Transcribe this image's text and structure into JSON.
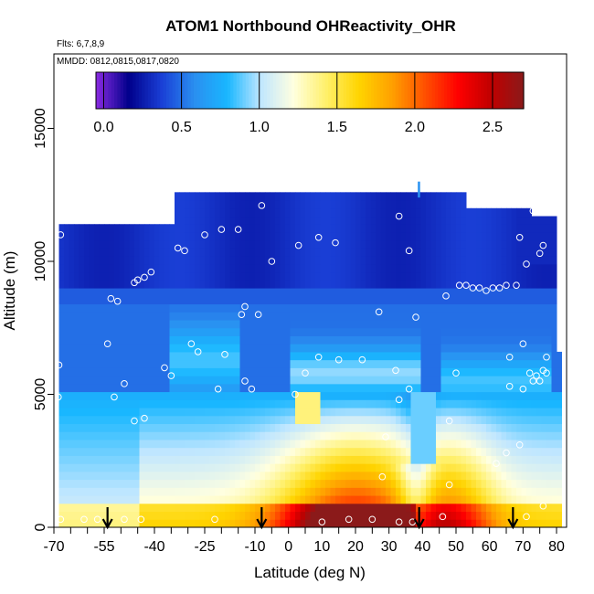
{
  "chart_data": {
    "type": "heatmap",
    "title": "ATOM1 Northbound OHReactivity_OHR",
    "subtitle_flights": "Flts: 6,7,8,9",
    "subtitle_dates": "MMDD: 0812,0815,0817,0820",
    "xlabel": "Latitude (deg N)",
    "ylabel": "Altitude (m)",
    "xlim": [
      -70,
      83
    ],
    "ylim": [
      0,
      17800
    ],
    "x_ticks": [
      -70,
      -55,
      -40,
      -25,
      -10,
      0,
      10,
      20,
      30,
      40,
      50,
      60,
      70,
      80
    ],
    "x_tick_labels": [
      "-70",
      "-55",
      "-40",
      "-25",
      "-10",
      "0",
      "10",
      "20",
      "30",
      "40",
      "50",
      "60",
      "70",
      "80"
    ],
    "y_ticks": [
      0,
      5000,
      10000,
      15000
    ],
    "y_tick_labels": [
      "0",
      "5000",
      "10000",
      "15000"
    ],
    "colorbar": {
      "range": [
        -0.05,
        2.7
      ],
      "ticks": [
        0.0,
        0.5,
        1.0,
        1.5,
        2.0,
        2.5
      ],
      "tick_labels": [
        "0.0",
        "0.5",
        "1.0",
        "1.5",
        "2.0",
        "2.5"
      ],
      "colors": [
        "#8a2be2",
        "#00008b",
        "#1a3fd6",
        "#2a8ff0",
        "#19b7ff",
        "#bfe6ff",
        "#ffffe0",
        "#fff06a",
        "#ffd400",
        "#ffa000",
        "#ff5000",
        "#ff0000",
        "#c00000",
        "#8b1a1a"
      ]
    },
    "arrows_latitude": [
      -54,
      -8,
      39,
      67
    ],
    "profile_points": [
      [
        -68,
        11000
      ],
      [
        -68.5,
        6100
      ],
      [
        -68.7,
        4900
      ],
      [
        -68,
        300
      ],
      [
        -53,
        8600
      ],
      [
        -51,
        8500
      ],
      [
        -46,
        9200
      ],
      [
        -45,
        9300
      ],
      [
        -43,
        9400
      ],
      [
        -41,
        9600
      ],
      [
        -33,
        10500
      ],
      [
        -31,
        10400
      ],
      [
        -25,
        11000
      ],
      [
        -20,
        11200
      ],
      [
        -15,
        11200
      ],
      [
        -8,
        12100
      ],
      [
        -54,
        6900
      ],
      [
        -52,
        4900
      ],
      [
        -49,
        5400
      ],
      [
        -46,
        4000
      ],
      [
        -43,
        4100
      ],
      [
        -37,
        6000
      ],
      [
        -35,
        5700
      ],
      [
        -29,
        6900
      ],
      [
        -27,
        6600
      ],
      [
        -21,
        5200
      ],
      [
        -19,
        6500
      ],
      [
        -14,
        8000
      ],
      [
        -13,
        8300
      ],
      [
        -9,
        8000
      ],
      [
        -13,
        5500
      ],
      [
        -11,
        5200
      ],
      [
        -5,
        10000
      ],
      [
        3,
        10600
      ],
      [
        9,
        10900
      ],
      [
        14,
        10700
      ],
      [
        5,
        5800
      ],
      [
        2,
        5000
      ],
      [
        9,
        6400
      ],
      [
        15,
        6300
      ],
      [
        22,
        6300
      ],
      [
        27,
        8100
      ],
      [
        33,
        11700
      ],
      [
        36,
        10400
      ],
      [
        36,
        5200
      ],
      [
        32,
        5900
      ],
      [
        33,
        4800
      ],
      [
        38,
        7900
      ],
      [
        47,
        8700
      ],
      [
        51,
        9100
      ],
      [
        53,
        9100
      ],
      [
        55,
        9000
      ],
      [
        57,
        9000
      ],
      [
        59,
        8900
      ],
      [
        61,
        9000
      ],
      [
        63,
        9000
      ],
      [
        65,
        9100
      ],
      [
        66,
        6400
      ],
      [
        68,
        9100
      ],
      [
        69,
        10900
      ],
      [
        71,
        9900
      ],
      [
        73,
        11900
      ],
      [
        75,
        10300
      ],
      [
        76,
        10600
      ],
      [
        74,
        5700
      ],
      [
        75,
        5500
      ],
      [
        76,
        5900
      ],
      [
        77,
        6400
      ],
      [
        77,
        5800
      ],
      [
        70,
        6900
      ],
      [
        66,
        5300
      ],
      [
        70,
        5200
      ],
      [
        72,
        5800
      ],
      [
        73,
        5500
      ],
      [
        48,
        4000
      ],
      [
        50,
        5800
      ],
      [
        48,
        1600
      ],
      [
        -61,
        300
      ],
      [
        -57,
        300
      ],
      [
        -49,
        300
      ],
      [
        -44,
        300
      ],
      [
        -22,
        300
      ],
      [
        10,
        200
      ],
      [
        18,
        300
      ],
      [
        25,
        300
      ],
      [
        33,
        200
      ],
      [
        37,
        200
      ],
      [
        46,
        400
      ],
      [
        62,
        2400
      ],
      [
        65,
        2800
      ],
      [
        69,
        3100
      ],
      [
        29,
        3400
      ],
      [
        28,
        1900
      ],
      [
        71,
        400
      ],
      [
        76,
        800
      ]
    ]
  }
}
